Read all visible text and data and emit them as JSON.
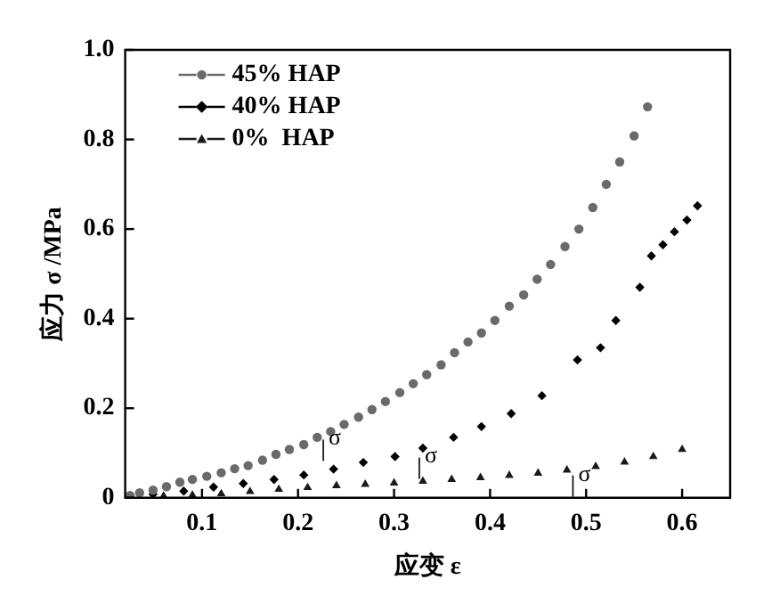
{
  "chart_data": {
    "type": "scatter",
    "xlabel": "应变 ε",
    "ylabel": "应力 σ /MPa",
    "xlim": [
      0.02,
      0.65
    ],
    "xticks": [
      0.1,
      0.2,
      0.3,
      0.4,
      0.5,
      0.6
    ],
    "ylim": [
      0,
      1
    ],
    "yticks": [
      0,
      0.2,
      0.4,
      0.6,
      0.8,
      {
        "value": 1,
        "label": "1.0"
      }
    ],
    "grid": false,
    "legend": "top left",
    "series": [
      {
        "name": "45% HAP",
        "color": "#6a6a6a",
        "marker": "circle",
        "x": [
          0.025,
          0.035,
          0.049,
          0.063,
          0.077,
          0.09,
          0.105,
          0.12,
          0.134,
          0.148,
          0.163,
          0.177,
          0.191,
          0.206,
          0.22,
          0.234,
          0.248,
          0.263,
          0.277,
          0.291,
          0.306,
          0.32,
          0.334,
          0.349,
          0.363,
          0.377,
          0.391,
          0.405,
          0.42,
          0.435,
          0.449,
          0.463,
          0.478,
          0.4925,
          0.507,
          0.521,
          0.535,
          0.55,
          0.564
        ],
        "values": [
          0.005,
          0.011,
          0.017,
          0.025,
          0.035,
          0.041,
          0.048,
          0.056,
          0.065,
          0.072,
          0.084,
          0.097,
          0.108,
          0.119,
          0.135,
          0.148,
          0.164,
          0.18,
          0.197,
          0.215,
          0.235,
          0.255,
          0.275,
          0.297,
          0.324,
          0.348,
          0.368,
          0.396,
          0.428,
          0.453,
          0.488,
          0.521,
          0.561,
          0.6,
          0.648,
          0.7,
          0.75,
          0.808,
          0.873
        ]
      },
      {
        "name": "40% HAP",
        "color": "#000000",
        "marker": "diamond",
        "x": [
          0.049,
          0.081,
          0.112,
          0.143,
          0.175,
          0.206,
          0.237,
          0.268,
          0.301,
          0.33,
          0.362,
          0.391,
          0.422,
          0.454,
          0.491,
          0.515,
          0.531,
          0.556,
          0.568,
          0.58,
          0.592,
          0.605,
          0.616
        ],
        "values": [
          0.008,
          0.015,
          0.024,
          0.032,
          0.041,
          0.051,
          0.064,
          0.079,
          0.092,
          0.111,
          0.135,
          0.159,
          0.188,
          0.228,
          0.308,
          0.335,
          0.396,
          0.47,
          0.54,
          0.565,
          0.594,
          0.62,
          0.652
        ]
      },
      {
        "name": "0%  HAP",
        "color": "#1a1a1a",
        "marker": "triangle",
        "x": [
          0.06,
          0.09,
          0.12,
          0.15,
          0.18,
          0.21,
          0.24,
          0.27,
          0.3,
          0.33,
          0.36,
          0.39,
          0.42,
          0.45,
          0.48,
          0.51,
          0.54,
          0.57,
          0.6
        ],
        "values": [
          0.004,
          0.006,
          0.009,
          0.014,
          0.019,
          0.023,
          0.027,
          0.03,
          0.033,
          0.037,
          0.041,
          0.045,
          0.05,
          0.055,
          0.062,
          0.07,
          0.08,
          0.092,
          0.108
        ]
      }
    ],
    "annotations": [
      {
        "text": "σ",
        "x": 0.23,
        "y": 0.13
      },
      {
        "text": "σ",
        "x": 0.33,
        "y": 0.09
      },
      {
        "text": "σ",
        "x": 0.49,
        "y": 0.05
      }
    ]
  }
}
